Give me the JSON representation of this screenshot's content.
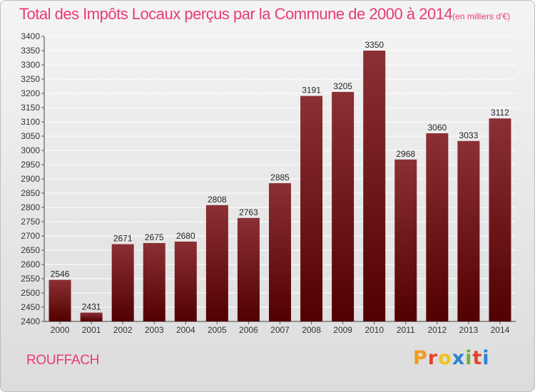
{
  "header": {
    "title": "Total des Impôts Locaux perçus par la Commune de 2000 à 2014",
    "unit": "(en milliers d'€)"
  },
  "footer": {
    "city": "ROUFFACH",
    "logo_text": "Proxiti",
    "logo_colors": [
      "#f29a1c",
      "#e8402a",
      "#f2c21c",
      "#2a82d6",
      "#6ab52e",
      "#e8402a",
      "#2a82d6"
    ]
  },
  "colors": {
    "title": "#e83a7a",
    "bar_top": "#8b3034",
    "bar_bottom": "#520000",
    "grid": "#ffffff"
  },
  "chart_data": {
    "type": "bar",
    "title": "Total des Impôts Locaux perçus par la Commune de 2000 à 2014",
    "categories": [
      "2000",
      "2001",
      "2002",
      "2003",
      "2004",
      "2005",
      "2006",
      "2007",
      "2008",
      "2009",
      "2010",
      "2011",
      "2012",
      "2013",
      "2014"
    ],
    "values": [
      2546,
      2431,
      2671,
      2675,
      2680,
      2808,
      2763,
      2885,
      3191,
      3205,
      3350,
      2968,
      3060,
      3033,
      3112
    ],
    "data_labels": [
      "2546",
      "2431",
      "2671",
      "2675",
      "2680",
      "2808",
      "2763",
      "2885",
      "3191",
      "3205",
      "3350",
      "2968",
      "3060",
      "3033",
      "3112"
    ],
    "ylim": [
      2400,
      3400
    ],
    "yticks": [
      "2400",
      "2450",
      "2500",
      "2550",
      "2600",
      "2650",
      "2700",
      "2750",
      "2800",
      "2850",
      "2900",
      "2950",
      "3000",
      "3050",
      "3100",
      "3150",
      "3200",
      "3250",
      "3300",
      "3350",
      "3400"
    ],
    "grid": true,
    "legend": "none"
  }
}
